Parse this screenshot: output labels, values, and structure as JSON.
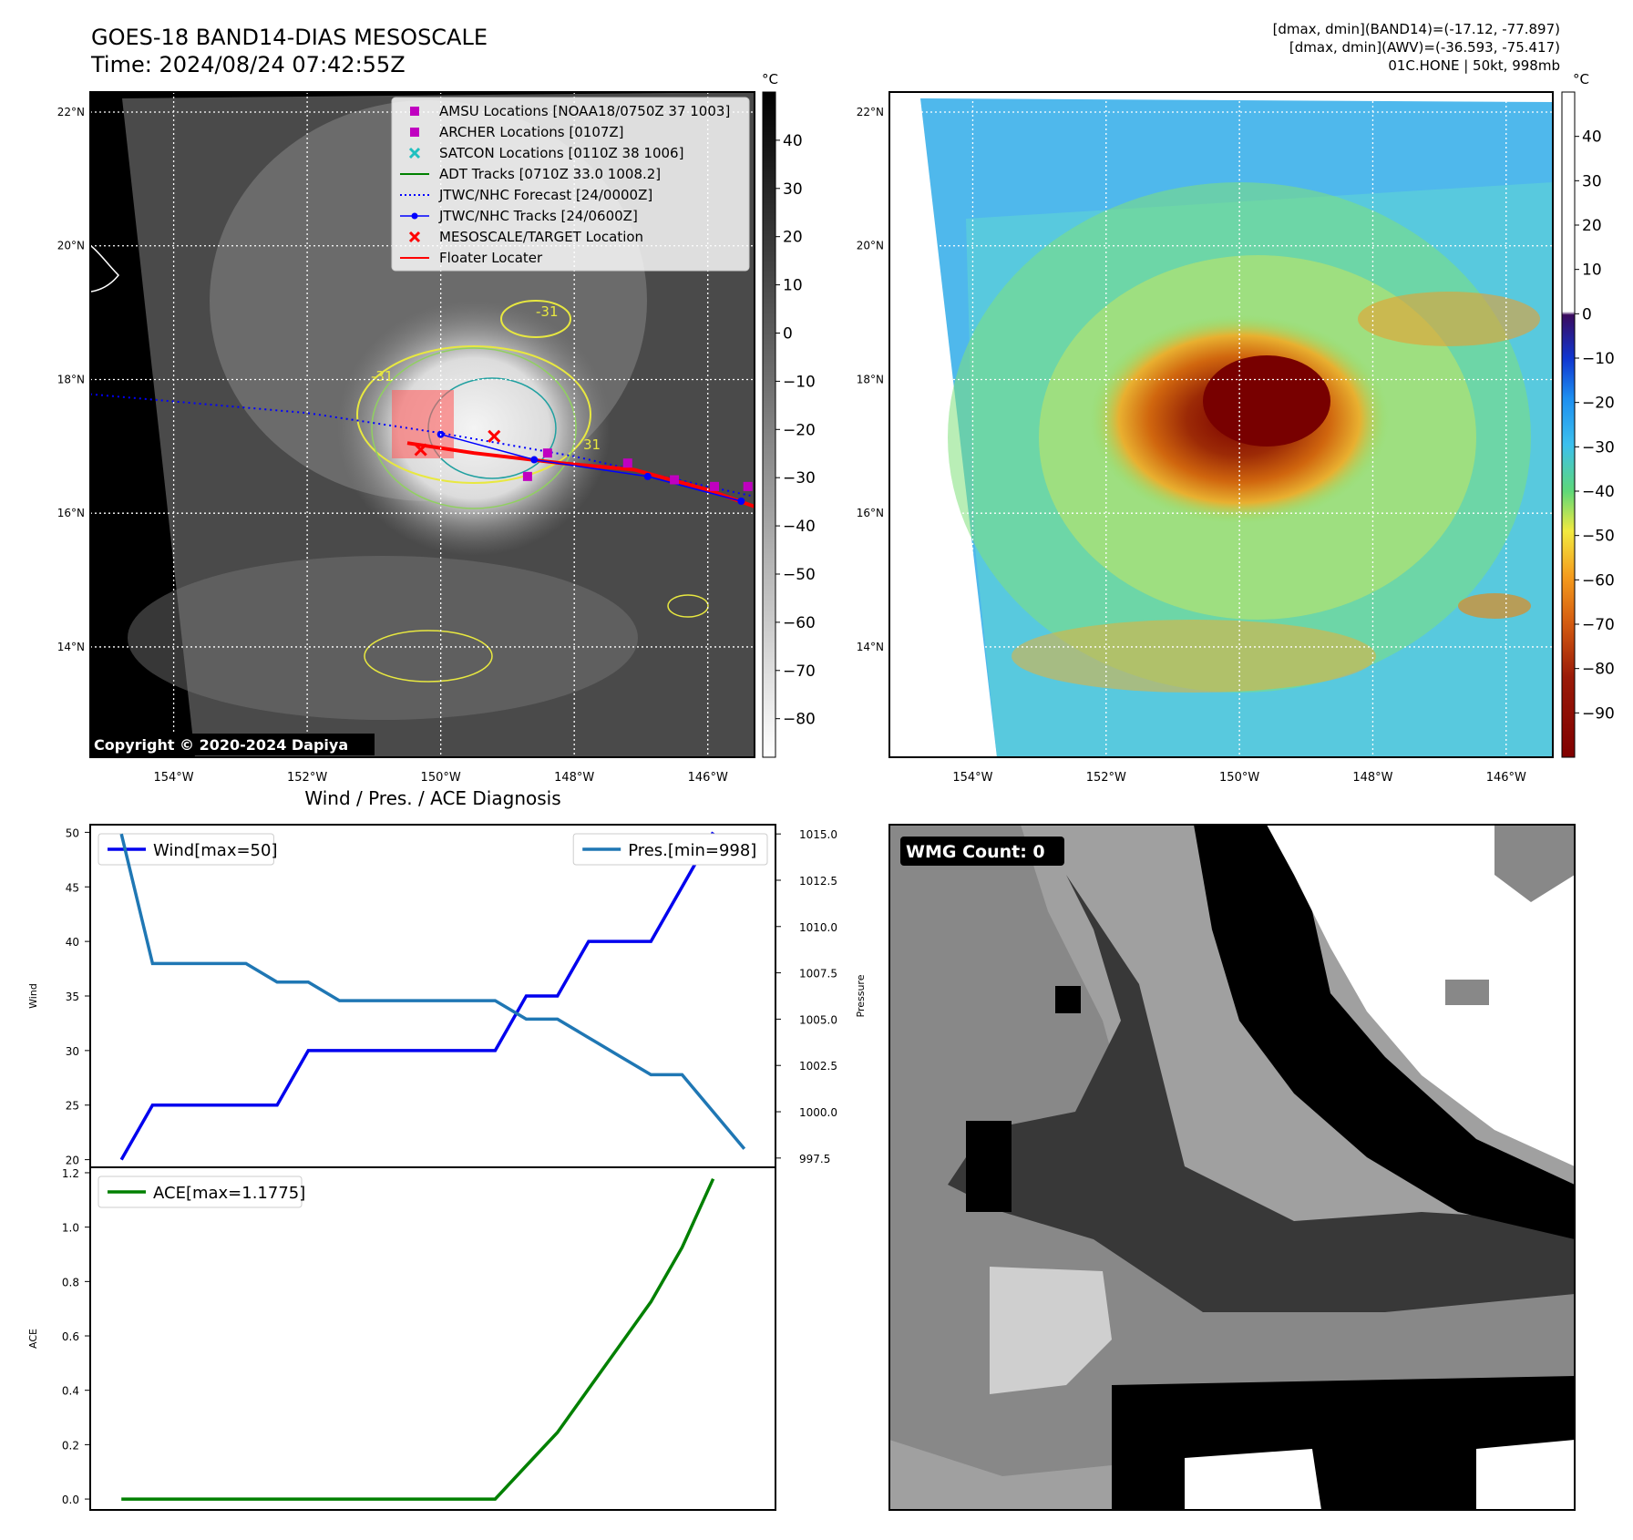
{
  "header": {
    "title_line1": "GOES-18 BAND14-DIAS MESOSCALE",
    "title_line2": "Time: 2024/08/24 07:42:55Z",
    "info_line1": "[dmax, dmin](BAND14)=(-17.12, -77.897)",
    "info_line2": "[dmax, dmin](AWV)=(-36.593, -75.417)",
    "info_line3": "01C.HONE | 50kt, 998mb"
  },
  "map_axes": {
    "lat_labels": [
      "22°N",
      "20°N",
      "18°N",
      "16°N",
      "14°N"
    ],
    "lon_labels": [
      "154°W",
      "152°W",
      "150°W",
      "148°W",
      "146°W"
    ],
    "lat_values": [
      22,
      20,
      18,
      16,
      14
    ],
    "lon_values": [
      -154,
      -152,
      -150,
      -148,
      -146
    ],
    "lon_range": [
      -155.25,
      -145.3
    ],
    "lat_range": [
      12.35,
      22.3
    ]
  },
  "ir_panel": {
    "colorbar_unit": "°C",
    "colorbar_ticks": [
      "40",
      "30",
      "20",
      "10",
      "0",
      "−10",
      "−20",
      "−30",
      "−40",
      "−50",
      "−60",
      "−70",
      "−80"
    ],
    "colorbar_values": [
      40,
      30,
      20,
      10,
      0,
      -10,
      -20,
      -30,
      -40,
      -50,
      -60,
      -70,
      -80
    ],
    "colorbar_range": [
      -88,
      50
    ],
    "copyright": "Copyright © 2020-2024 Dapiya",
    "contour_labels": [
      "-31",
      "-31",
      "31"
    ],
    "legend": [
      {
        "label": "AMSU Locations [NOAA18/0750Z 37 1003]",
        "marker": "square",
        "color": "#c000c0"
      },
      {
        "label": "ARCHER Locations [0107Z]",
        "marker": "square",
        "color": "#c000c0"
      },
      {
        "label": "SATCON Locations [0110Z 38 1006]",
        "marker": "x",
        "color": "#20c0c0"
      },
      {
        "label": "ADT Tracks [0710Z 33.0 1008.2]",
        "marker": "line",
        "color": "#008000"
      },
      {
        "label": "JTWC/NHC Forecast [24/0000Z]",
        "marker": "dotted",
        "color": "#0000ff"
      },
      {
        "label": "JTWC/NHC Tracks [24/0600Z]",
        "marker": "dotline",
        "color": "#0000ff"
      },
      {
        "label": "MESOSCALE/TARGET Location",
        "marker": "redx",
        "color": "#ff0000"
      },
      {
        "label": "Floater Locater",
        "marker": "line",
        "color": "#ff0000"
      }
    ],
    "jtwc_forecast": [
      [
        -155.25,
        17.78
      ],
      [
        -152,
        17.5
      ],
      [
        -150,
        17.2
      ],
      [
        -148,
        16.85
      ],
      [
        -146,
        16.4
      ],
      [
        -145.3,
        16.25
      ]
    ],
    "jtwc_tracks": [
      [
        -150.0,
        17.18
      ],
      [
        -148.6,
        16.8
      ],
      [
        -146.9,
        16.55
      ],
      [
        -145.5,
        16.18
      ]
    ],
    "mesoscale_target": [
      [
        -149.2,
        17.15
      ],
      [
        -150.3,
        16.95
      ]
    ],
    "amsu_points": [
      [
        -148.4,
        16.9
      ],
      [
        -148.7,
        16.55
      ],
      [
        -147.2,
        16.75
      ],
      [
        -146.5,
        16.5
      ],
      [
        -145.9,
        16.4
      ],
      [
        -145.4,
        16.4
      ]
    ],
    "floater_track": [
      [
        -150.5,
        17.05
      ],
      [
        -149.5,
        16.9
      ],
      [
        -148.2,
        16.75
      ],
      [
        -147.1,
        16.65
      ],
      [
        -146.0,
        16.35
      ],
      [
        -145.3,
        16.1
      ]
    ]
  },
  "wv_panel": {
    "colorbar_unit": "°C",
    "colorbar_ticks": [
      "40",
      "30",
      "20",
      "10",
      "0",
      "−10",
      "−20",
      "−30",
      "−40",
      "−50",
      "−60",
      "−70",
      "−80",
      "−90"
    ],
    "colorbar_values": [
      40,
      30,
      20,
      10,
      0,
      -10,
      -20,
      -30,
      -40,
      -50,
      -60,
      -70,
      -80,
      -90
    ],
    "colorbar_range": [
      -100,
      50
    ]
  },
  "diag_title": "Wind / Pres. / ACE Diagnosis",
  "chart_data": [
    {
      "type": "line",
      "title": "Wind / Pres. / ACE Diagnosis",
      "ylabel": "Wind",
      "ylabel_right": "Pressure",
      "ylim": [
        19.3,
        50.7
      ],
      "ylim_right": [
        997.0,
        1015.5
      ],
      "yticks": [
        20,
        25,
        30,
        35,
        40,
        45,
        50
      ],
      "yticks_right": [
        997.5,
        1000.0,
        1002.5,
        1005.0,
        1007.5,
        1010.0,
        1012.5,
        1015.0
      ],
      "x": [
        0,
        1,
        2,
        3,
        4,
        5,
        6,
        7,
        8,
        9,
        10,
        11,
        12,
        13,
        14,
        15,
        16,
        17,
        18,
        19,
        20
      ],
      "xlim": [
        -1,
        21
      ],
      "series": [
        {
          "name": "Wind[max=50]",
          "axis": "left",
          "color": "#0000ee",
          "values": [
            20,
            25,
            25,
            25,
            25,
            25,
            30,
            30,
            30,
            30,
            30,
            30,
            30,
            35,
            35,
            40,
            40,
            40,
            45,
            50,
            null
          ]
        },
        {
          "name": "Pres.[min=998]",
          "axis": "right",
          "color": "#1f77b4",
          "values": [
            1015,
            1008,
            1008,
            1008,
            1008,
            1007,
            1007,
            1006,
            1006,
            1006,
            1006,
            1006,
            1006,
            1005,
            1005,
            1004,
            1003,
            1002,
            1002,
            1000,
            998
          ]
        }
      ]
    },
    {
      "type": "line",
      "ylabel": "ACE",
      "ylim": [
        -0.04,
        1.22
      ],
      "yticks": [
        0.0,
        0.2,
        0.4,
        0.6,
        0.8,
        1.0,
        1.2
      ],
      "x": [
        0,
        1,
        2,
        3,
        4,
        5,
        6,
        7,
        8,
        9,
        10,
        11,
        12,
        13,
        14,
        15,
        16,
        17,
        18,
        19,
        20
      ],
      "xlim": [
        -1,
        21
      ],
      "series": [
        {
          "name": "ACE[max=1.1775]",
          "color": "#008000",
          "values": [
            0,
            0,
            0,
            0,
            0,
            0,
            0,
            0,
            0,
            0,
            0,
            0,
            0,
            0.1225,
            0.245,
            0.405,
            0.565,
            0.725,
            0.925,
            1.1775,
            null
          ]
        }
      ]
    }
  ],
  "wmg_panel": {
    "badge": "WMG Count: 0"
  }
}
